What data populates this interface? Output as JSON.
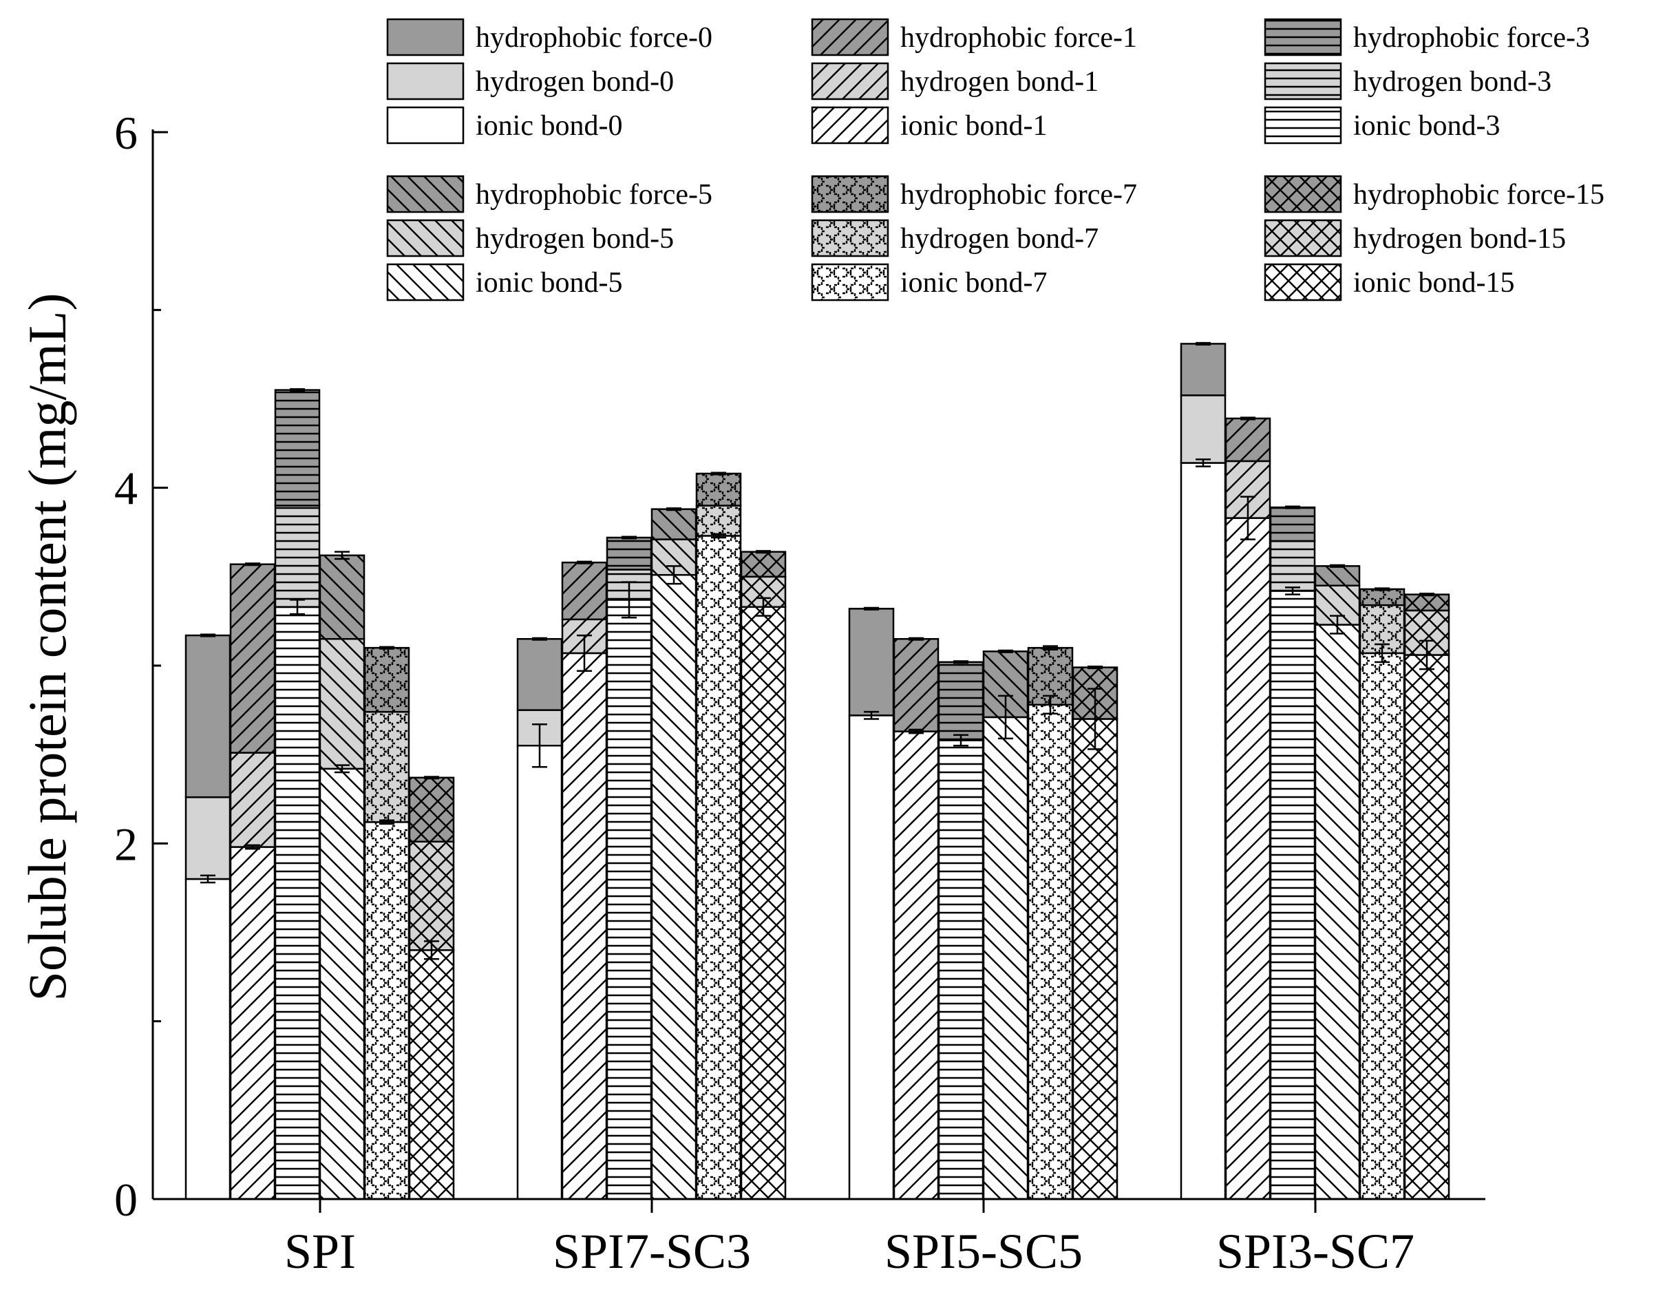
{
  "chart_data": {
    "type": "bar",
    "subtype": "stacked-grouped",
    "title": "",
    "xlabel": "",
    "ylabel": "Soluble protein content (mg/mL)",
    "ylim": [
      0,
      6
    ],
    "yticks": [
      "0",
      "2",
      "4",
      "6"
    ],
    "grid": false,
    "categories": [
      "SPI",
      "SPI7-SC3",
      "SPI5-SC5",
      "SPI3-SC7"
    ],
    "stack_components": [
      "ionic bond",
      "hydrogen bond",
      "hydrophobic force"
    ],
    "series": [
      {
        "name": "0",
        "pattern": "none",
        "ionic": [
          1.8,
          2.55,
          2.72,
          4.14
        ],
        "hydrogen": [
          0.46,
          0.2,
          0.0,
          0.38
        ],
        "hydrophobic": [
          0.91,
          0.4,
          0.6,
          0.29
        ],
        "ionic_err": [
          0.02,
          0.12,
          0.02,
          0.02
        ],
        "total_err": [
          0.005,
          0.005,
          0.005,
          0.005
        ]
      },
      {
        "name": "1",
        "pattern": "diag-fwd",
        "ionic": [
          1.98,
          3.07,
          2.63,
          3.83
        ],
        "hydrogen": [
          0.53,
          0.19,
          0.0,
          0.32
        ],
        "hydrophobic": [
          1.06,
          0.32,
          0.52,
          0.24
        ],
        "ionic_err": [
          0.01,
          0.1,
          0.01,
          0.12
        ],
        "total_err": [
          0.005,
          0.005,
          0.005,
          0.005
        ]
      },
      {
        "name": "3",
        "pattern": "horizontal",
        "ionic": [
          3.33,
          3.37,
          2.58,
          3.42
        ],
        "hydrogen": [
          0.57,
          0.17,
          0.0,
          0.28
        ],
        "hydrophobic": [
          0.65,
          0.18,
          0.44,
          0.19
        ],
        "ionic_err": [
          0.04,
          0.1,
          0.03,
          0.02
        ],
        "total_err": [
          0.005,
          0.005,
          0.005,
          0.005
        ]
      },
      {
        "name": "5",
        "pattern": "diag-back",
        "ionic": [
          2.42,
          3.51,
          2.71,
          3.23
        ],
        "hydrogen": [
          0.73,
          0.2,
          0.0,
          0.22
        ],
        "hydrophobic": [
          0.47,
          0.17,
          0.37,
          0.11
        ],
        "ionic_err": [
          0.02,
          0.05,
          0.12,
          0.05
        ],
        "total_err": [
          0.02,
          0.005,
          0.005,
          0.005
        ]
      },
      {
        "name": "7",
        "pattern": "zigzag",
        "ionic": [
          2.12,
          3.73,
          2.78,
          3.07
        ],
        "hydrogen": [
          0.62,
          0.17,
          0.0,
          0.27
        ],
        "hydrophobic": [
          0.36,
          0.18,
          0.32,
          0.09
        ],
        "ionic_err": [
          0.01,
          0.01,
          0.05,
          0.05
        ],
        "total_err": [
          0.005,
          0.005,
          0.01,
          0.005
        ]
      },
      {
        "name": "15",
        "pattern": "crosshatch",
        "ionic": [
          1.4,
          3.33,
          2.7,
          3.06
        ],
        "hydrogen": [
          0.61,
          0.17,
          0.0,
          0.25
        ],
        "hydrophobic": [
          0.36,
          0.14,
          0.29,
          0.09
        ],
        "ionic_err": [
          0.05,
          0.05,
          0.17,
          0.08
        ],
        "total_err": [
          0.005,
          0.005,
          0.005,
          0.005
        ]
      }
    ],
    "fills": {
      "ionic": "#ffffff",
      "hydrogen": "#d4d4d4",
      "hydrophobic": "#9a9a9a"
    },
    "legend": [
      [
        "hydrophobic force-0",
        "hydrogen bond-0",
        "ionic bond-0"
      ],
      [
        "hydrophobic force-1",
        "hydrogen bond-1",
        "ionic bond-1"
      ],
      [
        "hydrophobic force-3",
        "hydrogen bond-3",
        "ionic bond-3"
      ],
      [
        "hydrophobic force-5",
        "hydrogen bond-5",
        "ionic bond-5"
      ],
      [
        "hydrophobic force-7",
        "hydrogen bond-7",
        "ionic bond-7"
      ],
      [
        "hydrophobic force-15",
        "hydrogen bond-15",
        "ionic bond-15"
      ]
    ],
    "legend_position": "top"
  }
}
